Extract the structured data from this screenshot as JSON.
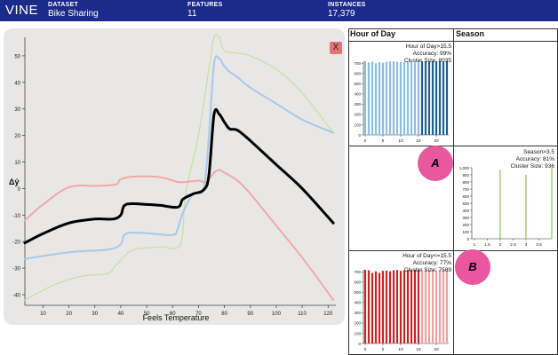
{
  "header": {
    "brand": "VINE",
    "columns": [
      {
        "label": "DATASET",
        "value": "Bike Sharing"
      },
      {
        "label": "FEATURES",
        "value": "11"
      },
      {
        "label": "INSTANCES",
        "value": "17,379"
      }
    ]
  },
  "main_chart": {
    "close_label": "X",
    "ylabel": "Δŷ",
    "xlabel": "Feels Temperature"
  },
  "grid": {
    "col_headers": [
      "Hour of Day",
      "Season"
    ],
    "cell_a": {
      "lines": [
        "Hour of Day>15.5",
        "Accuracy: 99%",
        "Cluster Size: 8035"
      ]
    },
    "cell_b": {
      "lines": [
        "Season>3.5",
        "Accuracy: 81%",
        "Cluster Size: 936"
      ]
    },
    "cell_c": {
      "lines": [
        "Hour of Day<=15.5",
        "Accuracy: 77%",
        "Cluster Size: 7589"
      ]
    }
  },
  "annotations": {
    "badge_a": "A",
    "badge_b": "B"
  },
  "colors": {
    "header_bg": "#1c2b8a",
    "blue_dark": "#1f5f99",
    "blue_light": "#8fbde0",
    "red_dark": "#c62828",
    "red_light": "#f2a0a0",
    "green": "#7fbf3f",
    "badge": "#e9579f"
  },
  "chart_data": [
    {
      "type": "line",
      "xlabel": "Feels Temperature",
      "ylabel": "Δŷ",
      "xlim": [
        3,
        123
      ],
      "ylim": [
        -44,
        57
      ],
      "xticks": [
        10,
        20,
        30,
        40,
        50,
        60,
        70,
        80,
        90,
        100,
        110,
        120
      ],
      "yticks": [
        -40,
        -30,
        -20,
        -10,
        0,
        10,
        20,
        30,
        40,
        50
      ],
      "series": [
        {
          "color": "#000000",
          "x": [
            3,
            10,
            20,
            30,
            37,
            40,
            42,
            50,
            55,
            62,
            64,
            68,
            72,
            74,
            76,
            78,
            80,
            82,
            85,
            90,
            100,
            110,
            122
          ],
          "y": [
            -20.5,
            -17,
            -13,
            -11.5,
            -11.5,
            -10,
            -6,
            -6,
            -6.3,
            -7,
            -4,
            -2,
            -0.5,
            5,
            28,
            28,
            25,
            22.5,
            22,
            18,
            9,
            0,
            -13
          ]
        },
        {
          "color": "#a9c9e8",
          "x": [
            3,
            20,
            35,
            40,
            42,
            50,
            60,
            62,
            64,
            68,
            72,
            74,
            76,
            78,
            80,
            82,
            85,
            90,
            100,
            110,
            122
          ],
          "y": [
            -26.5,
            -24,
            -23,
            -21,
            -17,
            -16.8,
            -17.5,
            -15,
            -9,
            -2,
            0,
            20,
            47,
            49,
            46,
            44,
            42,
            38,
            32,
            26,
            21
          ]
        },
        {
          "color": "#f2a8a8",
          "x": [
            3,
            10,
            20,
            30,
            38,
            40,
            45,
            55,
            62,
            65,
            70,
            73,
            76,
            78,
            80,
            85,
            90,
            100,
            110,
            122
          ],
          "y": [
            -12,
            -6,
            0.5,
            1,
            1.5,
            3.5,
            4.5,
            4.3,
            2.5,
            2.5,
            3,
            2.5,
            6,
            7,
            6,
            3,
            -2,
            -14,
            -26,
            -42
          ]
        },
        {
          "color": "#c5e0a0",
          "x": [
            3,
            15,
            25,
            35,
            38,
            42,
            45,
            55,
            63,
            65,
            70,
            74,
            76,
            78,
            80,
            85,
            90,
            100,
            110,
            122
          ],
          "y": [
            -42,
            -36,
            -33,
            -32,
            -29,
            -25,
            -23,
            -22,
            -21,
            -2,
            20,
            45,
            57,
            57,
            52,
            51,
            50,
            45,
            36,
            21
          ]
        }
      ]
    },
    {
      "type": "bar",
      "title": "Hour of Day>15.5",
      "xlim": [
        -0.5,
        23.5
      ],
      "ylim": [
        0,
        720
      ],
      "xticks": [
        0,
        5,
        10,
        15,
        20
      ],
      "yticks": [
        0,
        100,
        200,
        300,
        400,
        500,
        600,
        700
      ],
      "x": [
        0,
        1,
        2,
        3,
        4,
        5,
        6,
        7,
        8,
        9,
        10,
        11,
        12,
        13,
        14,
        15,
        16,
        17,
        18,
        19,
        20,
        21,
        22,
        23
      ],
      "values": [
        720,
        710,
        715,
        700,
        710,
        705,
        715,
        718,
        720,
        715,
        712,
        710,
        715,
        712,
        710,
        715,
        720,
        720,
        718,
        720,
        720,
        720,
        718,
        720
      ],
      "highlight_from": 16,
      "colors": [
        "#8fbde0",
        "#1f5f99"
      ]
    },
    {
      "type": "bar",
      "title": "Season>3.5",
      "xlim": [
        0.9,
        4.0
      ],
      "ylim": [
        0,
        1000
      ],
      "xticks": [
        1.0,
        1.5,
        2.0,
        2.5,
        3.0,
        3.5
      ],
      "yticks": [
        0,
        100,
        200,
        300,
        400,
        500,
        600,
        700,
        800,
        900,
        1000
      ],
      "x": [
        2.0,
        3.0,
        4.0
      ],
      "values": [
        970,
        900,
        1000
      ],
      "colors": [
        "#7fbf3f"
      ]
    },
    {
      "type": "bar",
      "title": "Hour of Day<=15.5",
      "xlim": [
        -0.5,
        23.5
      ],
      "ylim": [
        0,
        720
      ],
      "xticks": [
        0,
        5,
        10,
        15,
        20
      ],
      "yticks": [
        0,
        100,
        200,
        300,
        400,
        500,
        600,
        700
      ],
      "x": [
        0,
        1,
        2,
        3,
        4,
        5,
        6,
        7,
        8,
        9,
        10,
        11,
        12,
        13,
        14,
        15,
        16,
        17,
        18,
        19,
        20,
        21,
        22,
        23
      ],
      "values": [
        720,
        715,
        690,
        705,
        690,
        710,
        712,
        705,
        715,
        718,
        710,
        715,
        720,
        718,
        720,
        715,
        720,
        718,
        715,
        720,
        712,
        718,
        720,
        715
      ],
      "highlight_to": 15,
      "colors": [
        "#c62828",
        "#f2a0a0"
      ]
    }
  ]
}
